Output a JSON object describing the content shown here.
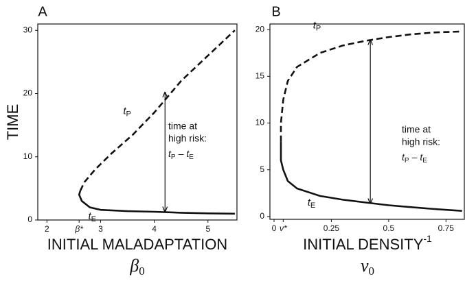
{
  "chart_data": [
    {
      "type": "line",
      "panel": "A",
      "ylabel": "TIME",
      "xlabel": "INITIAL MALADAPTATION",
      "xsymbol": {
        "text": "β",
        "sub": "0"
      },
      "xlim": [
        1.83,
        5.54
      ],
      "ylim": [
        0,
        31
      ],
      "xticks": [
        2,
        {
          "value": 2.6,
          "label": "β*"
        },
        3,
        4,
        5
      ],
      "yticks": [
        0,
        10,
        20,
        30
      ],
      "series": [
        {
          "label": "t",
          "label_sub": "E",
          "color": "#111111",
          "dashed": false,
          "x": [
            2.62,
            2.6,
            2.65,
            2.8,
            3,
            3.5,
            4,
            4.5,
            5,
            5.5
          ],
          "y": [
            4.6,
            4.0,
            3.0,
            2.0,
            1.6,
            1.4,
            1.3,
            1.15,
            1.05,
            1.0
          ]
        },
        {
          "label": "t",
          "label_sub": "P",
          "color": "#111111",
          "dashed": true,
          "x": [
            2.62,
            2.7,
            2.9,
            3.2,
            3.6,
            4,
            4.2,
            4.5,
            5,
            5.5
          ],
          "y": [
            4.6,
            6,
            8,
            10.5,
            13.5,
            17,
            19,
            22,
            26,
            30
          ]
        }
      ],
      "annotation": [
        "time at",
        "high risk:"
      ],
      "operator": "–",
      "arrow": {
        "x": 4.2,
        "y": [
          1.3,
          20.2
        ]
      }
    },
    {
      "type": "line",
      "panel": "B",
      "xlabel": "INITIAL DENSITY",
      "xlabel_sup": "-1",
      "xsymbol": {
        "text": "ν",
        "sub": "0"
      },
      "xlim": [
        -0.018,
        0.83
      ],
      "ylim": [
        -0.3,
        20.6
      ],
      "xticks": [
        0,
        {
          "value": 0.04,
          "label": "ν*"
        },
        0.25,
        0.5,
        0.75
      ],
      "yticks": [
        0,
        5,
        10,
        15,
        20
      ],
      "series": [
        {
          "label": "t",
          "label_sub": "E",
          "color": "#111111",
          "dashed": false,
          "x": [
            0.03,
            0.03,
            0.04,
            0.06,
            0.1,
            0.2,
            0.3,
            0.4,
            0.5,
            0.6,
            0.7,
            0.82
          ],
          "y": [
            8,
            6,
            5,
            3.8,
            3,
            2.2,
            1.8,
            1.5,
            1.2,
            1.0,
            0.8,
            0.6
          ]
        },
        {
          "label": "t",
          "label_sub": "P",
          "color": "#111111",
          "dashed": true,
          "x": [
            0.03,
            0.03,
            0.04,
            0.06,
            0.1,
            0.2,
            0.3,
            0.4,
            0.5,
            0.6,
            0.7,
            0.82
          ],
          "y": [
            8,
            10,
            12.5,
            14.5,
            16,
            17.5,
            18.3,
            18.8,
            19.2,
            19.5,
            19.7,
            19.8
          ]
        }
      ],
      "annotation": [
        "time at",
        "high risk:"
      ],
      "operator": "–",
      "arrow": {
        "x": 0.42,
        "y": [
          1.4,
          18.9
        ]
      }
    }
  ]
}
